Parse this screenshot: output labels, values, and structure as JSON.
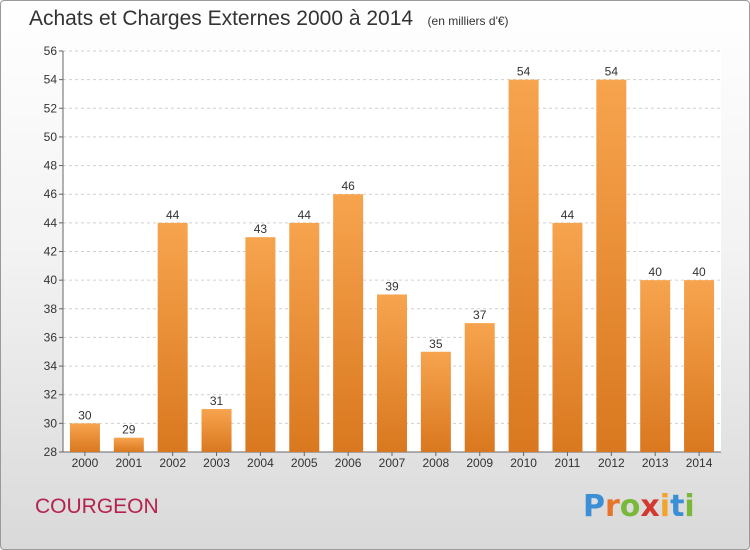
{
  "chart_data": {
    "type": "bar",
    "title": "Achats et Charges Externes 2000 à 2014",
    "subtitle": "(en milliers d'€)",
    "categories": [
      "2000",
      "2001",
      "2002",
      "2003",
      "2004",
      "2005",
      "2006",
      "2007",
      "2008",
      "2009",
      "2010",
      "2011",
      "2012",
      "2013",
      "2014"
    ],
    "values": [
      30,
      29,
      44,
      31,
      43,
      44,
      46,
      39,
      35,
      37,
      54,
      44,
      54,
      40,
      40
    ],
    "ylim": [
      28,
      56
    ],
    "yticks": [
      28,
      30,
      32,
      34,
      36,
      38,
      40,
      42,
      44,
      46,
      48,
      50,
      52,
      54,
      56
    ],
    "grid": true,
    "bar_color_top": "#f7a44e",
    "bar_color_bottom": "#d9781f"
  },
  "footer": {
    "commune": "COURGEON",
    "logo_parts": [
      "P",
      "r",
      "o",
      "x",
      "i",
      "t",
      "i"
    ]
  }
}
